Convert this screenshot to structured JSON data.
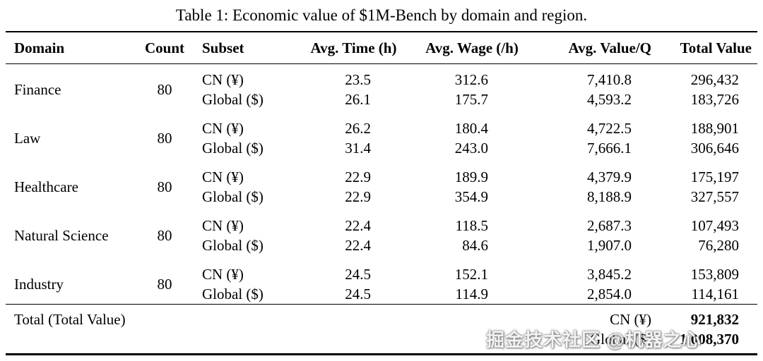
{
  "caption": "Table 1: Economic value of $1M-Bench by domain and region.",
  "colors": {
    "text": "#000000",
    "background": "#ffffff",
    "rule": "#000000"
  },
  "table": {
    "headers": [
      "Domain",
      "Count",
      "Subset",
      "Avg. Time (h)",
      "Avg. Wage (/h)",
      "Avg. Value/Q",
      "Total Value"
    ],
    "groups": [
      {
        "domain": "Finance",
        "count": "80",
        "rows": [
          {
            "subset": "CN (¥)",
            "time": "23.5",
            "wage": "312.6",
            "value_q": "7,410.8",
            "total": "296,432"
          },
          {
            "subset": "Global ($)",
            "time": "26.1",
            "wage": "175.7",
            "value_q": "4,593.2",
            "total": "183,726"
          }
        ]
      },
      {
        "domain": "Law",
        "count": "80",
        "rows": [
          {
            "subset": "CN (¥)",
            "time": "26.2",
            "wage": "180.4",
            "value_q": "4,722.5",
            "total": "188,901"
          },
          {
            "subset": "Global ($)",
            "time": "31.4",
            "wage": "243.0",
            "value_q": "7,666.1",
            "total": "306,646"
          }
        ]
      },
      {
        "domain": "Healthcare",
        "count": "80",
        "rows": [
          {
            "subset": "CN (¥)",
            "time": "22.9",
            "wage": "189.9",
            "value_q": "4,379.9",
            "total": "175,197"
          },
          {
            "subset": "Global ($)",
            "time": "22.9",
            "wage": "354.9",
            "value_q": "8,188.9",
            "total": "327,557"
          }
        ]
      },
      {
        "domain": "Natural Science",
        "count": "80",
        "rows": [
          {
            "subset": "CN (¥)",
            "time": "22.4",
            "wage": "118.5",
            "value_q": "2,687.3",
            "total": "107,493"
          },
          {
            "subset": "Global ($)",
            "time": "22.4",
            "wage": "84.6",
            "value_q": "1,907.0",
            "total": "76,280"
          }
        ]
      },
      {
        "domain": "Industry",
        "count": "80",
        "rows": [
          {
            "subset": "CN (¥)",
            "time": "24.5",
            "wage": "152.1",
            "value_q": "3,845.2",
            "total": "153,809"
          },
          {
            "subset": "Global ($)",
            "time": "24.5",
            "wage": "114.9",
            "value_q": "2,854.0",
            "total": "114,161"
          }
        ]
      }
    ],
    "total": {
      "label": "Total (Total Value)",
      "rows": [
        {
          "subset": "CN (¥)",
          "value": "921,832"
        },
        {
          "subset": "Global ($)",
          "value": "1,008,370"
        }
      ]
    }
  },
  "watermark": {
    "text": "掘金技术社区 @机器之心"
  }
}
